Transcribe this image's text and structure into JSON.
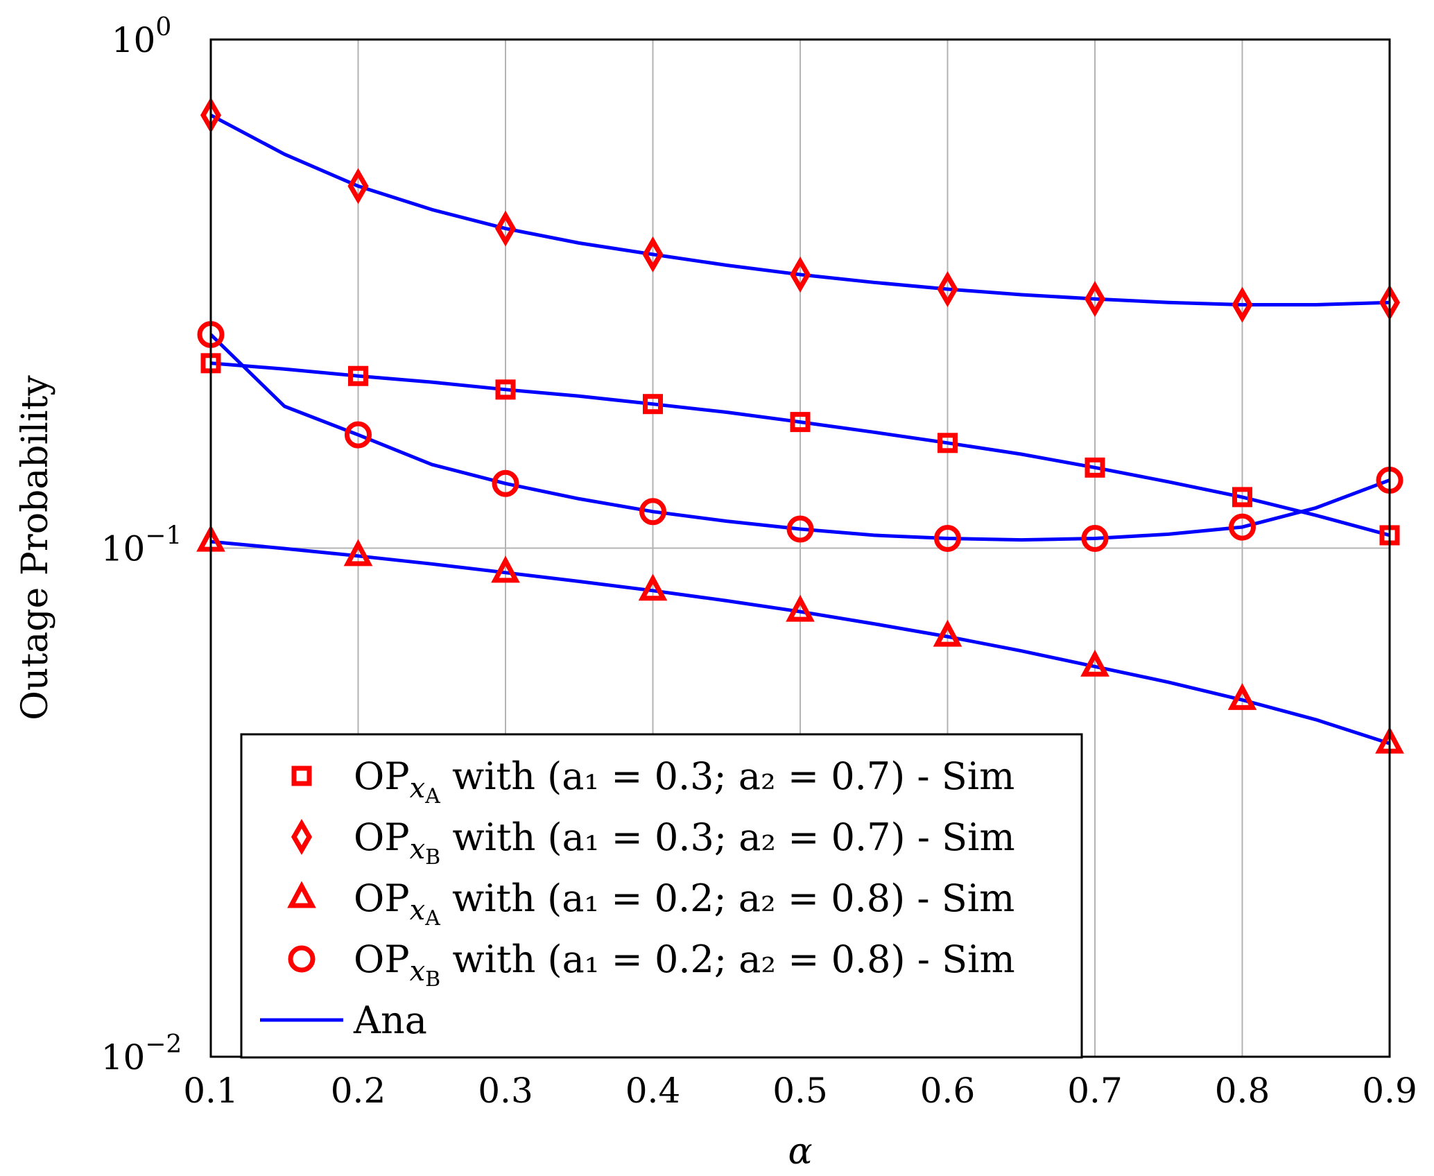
{
  "chart_data": {
    "type": "line",
    "title": "",
    "xlabel": "α",
    "ylabel": "Outage Probability",
    "xlim": [
      0.1,
      0.9
    ],
    "ylim": [
      0.01,
      1
    ],
    "yscale": "log",
    "grid": true,
    "legend_position": "bottom-left",
    "x_ticks": [
      "0.1",
      "0.2",
      "0.3",
      "0.4",
      "0.5",
      "0.6",
      "0.7",
      "0.8",
      "0.9"
    ],
    "y_ticks": [
      {
        "base": "10",
        "exp": "0",
        "value": 1
      },
      {
        "base": "10",
        "exp": "−1",
        "value": 0.1
      },
      {
        "base": "10",
        "exp": "−2",
        "value": 0.01
      }
    ],
    "sim_x": [
      0.1,
      0.2,
      0.3,
      0.4,
      0.5,
      0.6,
      0.7,
      0.8,
      0.9
    ],
    "ana_x": [
      0.1,
      0.15,
      0.2,
      0.25,
      0.3,
      0.35,
      0.4,
      0.45,
      0.5,
      0.55,
      0.6,
      0.65,
      0.7,
      0.75,
      0.8,
      0.85,
      0.9
    ],
    "series": [
      {
        "name": "OP_xA (a1=0.3; a2=0.7) - Sim",
        "legend": {
          "op": "OP",
          "sub": "A",
          "rest": " with (a₁ = 0.3; a₂ = 0.7) - Sim"
        },
        "marker": "square",
        "color": "#ff0000",
        "values": [
          0.231,
          0.218,
          0.205,
          0.192,
          0.177,
          0.161,
          0.144,
          0.126,
          0.106
        ],
        "ana": [
          0.231,
          0.225,
          0.218,
          0.212,
          0.205,
          0.199,
          0.192,
          0.185,
          0.177,
          0.169,
          0.161,
          0.153,
          0.144,
          0.135,
          0.126,
          0.116,
          0.106
        ]
      },
      {
        "name": "OP_xB (a1=0.3; a2=0.7) - Sim",
        "legend": {
          "op": "OP",
          "sub": "B",
          "rest": " with (a₁ = 0.3; a₂ = 0.7) - Sim"
        },
        "marker": "diamond",
        "color": "#ff0000",
        "values": [
          0.71,
          0.515,
          0.425,
          0.378,
          0.345,
          0.323,
          0.309,
          0.301,
          0.304
        ],
        "ana": [
          0.71,
          0.595,
          0.515,
          0.463,
          0.425,
          0.398,
          0.378,
          0.36,
          0.345,
          0.333,
          0.323,
          0.315,
          0.309,
          0.304,
          0.301,
          0.301,
          0.304
        ]
      },
      {
        "name": "OP_xA (a1=0.2; a2=0.8) - Sim",
        "legend": {
          "op": "OP",
          "sub": "A",
          "rest": " with (a₁ = 0.2; a₂ = 0.8) - Sim"
        },
        "marker": "triangle",
        "color": "#ff0000",
        "values": [
          0.103,
          0.0965,
          0.0895,
          0.0825,
          0.075,
          0.067,
          0.0585,
          0.0503,
          0.0413
        ],
        "ana": [
          0.103,
          0.0998,
          0.0965,
          0.0931,
          0.0895,
          0.086,
          0.0825,
          0.0788,
          0.075,
          0.071,
          0.067,
          0.0628,
          0.0585,
          0.0545,
          0.0503,
          0.046,
          0.0413
        ]
      },
      {
        "name": "OP_xB (a1=0.2; a2=0.8) - Sim",
        "legend": {
          "op": "OP",
          "sub": "B",
          "rest": " with (a₁ = 0.2; a₂ = 0.8) - Sim"
        },
        "marker": "circle",
        "color": "#ff0000",
        "values": [
          0.263,
          0.167,
          0.134,
          0.118,
          0.109,
          0.1045,
          0.1045,
          0.11,
          0.136
        ],
        "ana": [
          0.263,
          0.19,
          0.167,
          0.146,
          0.134,
          0.125,
          0.118,
          0.113,
          0.109,
          0.106,
          0.1045,
          0.1038,
          0.1045,
          0.1065,
          0.11,
          0.12,
          0.136
        ]
      },
      {
        "name": "Ana",
        "legend": {
          "op": "",
          "sub": "",
          "rest": "Ana"
        },
        "marker": "line",
        "color": "#0000ff"
      }
    ]
  }
}
